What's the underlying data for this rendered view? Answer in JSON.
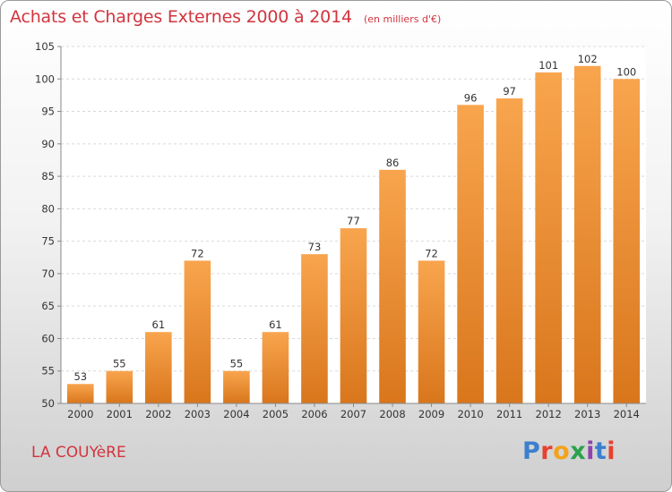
{
  "chart_data": {
    "type": "bar",
    "title": "Achats et Charges Externes 2000 à 2014",
    "subtitle": "(en milliers d'€)",
    "categories": [
      "2000",
      "2001",
      "2002",
      "2003",
      "2004",
      "2005",
      "2006",
      "2007",
      "2008",
      "2009",
      "2010",
      "2011",
      "2012",
      "2013",
      "2014"
    ],
    "values": [
      53,
      55,
      61,
      72,
      55,
      61,
      73,
      77,
      86,
      72,
      96,
      97,
      101,
      102,
      100
    ],
    "ylim": [
      50,
      105
    ],
    "yticks": [
      50,
      55,
      60,
      65,
      70,
      75,
      80,
      85,
      90,
      95,
      100,
      105
    ],
    "grid": true,
    "bar_color_top": "#f8a54e",
    "bar_color_bottom": "#d9761c"
  },
  "location": "LA COUYèRE",
  "logo": {
    "letters": [
      "P",
      "r",
      "o",
      "x",
      "i",
      "t",
      "i"
    ]
  }
}
